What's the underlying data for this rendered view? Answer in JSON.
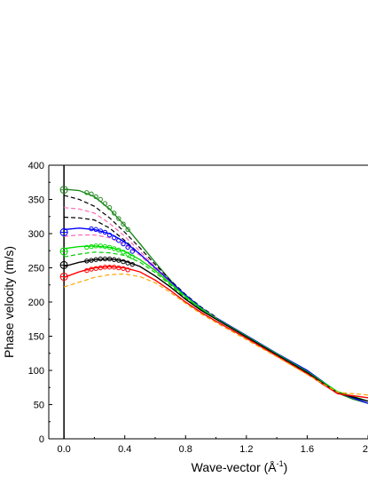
{
  "chart_data": {
    "type": "line",
    "xlabel": "Wave-vector  (Å",
    "xlabel_sup": "-1",
    "xlabel_close": ")",
    "ylabel": "Phase velocity  (m/s)",
    "xlim": [
      -0.1,
      2.0
    ],
    "ylim": [
      0,
      400
    ],
    "x_ticks": [
      0.0,
      0.4,
      0.8,
      1.2,
      1.6,
      2.0
    ],
    "x_tick_labels": [
      "0.0",
      "0.4",
      "0.8",
      "1.2",
      "1.6",
      "2"
    ],
    "y_ticks": [
      0,
      50,
      100,
      150,
      200,
      250,
      300,
      350,
      400
    ],
    "y_tick_labels": [
      "0",
      "50",
      "100",
      "150",
      "200",
      "250",
      "300",
      "350",
      "400"
    ],
    "grid": false,
    "legend": "none",
    "series": [
      {
        "style": "solid",
        "color": "#228b22",
        "x": [
          0.0,
          0.1,
          0.2,
          0.3,
          0.4,
          0.5,
          0.6,
          0.7,
          0.8,
          0.9,
          1.0,
          1.1,
          1.2,
          1.3,
          1.4,
          1.5,
          1.6,
          1.7,
          1.8,
          1.9,
          2.0
        ],
        "y": [
          365,
          363,
          354,
          336,
          312,
          285,
          258,
          232,
          208,
          190,
          176,
          163,
          150,
          137,
          124,
          110,
          96,
          80,
          67,
          58,
          52
        ]
      },
      {
        "style": "dash",
        "color": "#000000",
        "x": [
          0.0,
          0.1,
          0.2,
          0.3,
          0.4,
          0.5,
          0.6,
          0.7,
          0.8,
          0.9,
          1.0
        ],
        "y": [
          356,
          350,
          340,
          323,
          302,
          279,
          255,
          232,
          211,
          193,
          178
        ]
      },
      {
        "style": "dash",
        "color": "#ff69b4",
        "x": [
          0.0,
          0.1,
          0.2,
          0.3,
          0.4,
          0.5,
          0.6,
          0.7,
          0.8,
          0.9,
          1.0
        ],
        "y": [
          338,
          336,
          330,
          315,
          296,
          274,
          252,
          230,
          210,
          192,
          177
        ]
      },
      {
        "style": "dash",
        "color": "#000000",
        "x": [
          0.0,
          0.1,
          0.2,
          0.3,
          0.4,
          0.5,
          0.6,
          0.7,
          0.8,
          0.9,
          1.0
        ],
        "y": [
          324,
          323,
          320,
          308,
          290,
          270,
          249,
          228,
          208,
          191,
          177
        ]
      },
      {
        "style": "solid",
        "color": "#0000ff",
        "x": [
          0.0,
          0.1,
          0.2,
          0.3,
          0.4,
          0.5,
          0.6,
          0.7,
          0.8,
          0.9,
          1.0,
          1.2,
          1.4,
          1.6,
          1.8,
          2.0
        ],
        "y": [
          306,
          308,
          306,
          300,
          288,
          270,
          250,
          230,
          210,
          192,
          177,
          151,
          125,
          100,
          68,
          52
        ]
      },
      {
        "style": "dash",
        "color": "#ff69b4",
        "x": [
          0.0,
          0.1,
          0.2,
          0.3,
          0.4,
          0.5,
          0.6,
          0.7,
          0.8,
          0.9,
          1.0
        ],
        "y": [
          296,
          298,
          298,
          294,
          284,
          268,
          248,
          228,
          208,
          191,
          177
        ]
      },
      {
        "style": "solid",
        "color": "#00dd00",
        "x": [
          0.0,
          0.1,
          0.2,
          0.3,
          0.4,
          0.5,
          0.6,
          0.7,
          0.8,
          0.9,
          1.0,
          1.2,
          1.4,
          1.6,
          1.8,
          2.0
        ],
        "y": [
          278,
          281,
          282,
          280,
          274,
          262,
          246,
          227,
          208,
          191,
          176,
          150,
          124,
          98,
          69,
          55
        ]
      },
      {
        "style": "dash",
        "color": "#00cc00",
        "x": [
          0.0,
          0.1,
          0.2,
          0.3,
          0.4,
          0.5,
          0.6,
          0.7,
          0.8,
          0.9,
          1.0
        ],
        "y": [
          266,
          270,
          273,
          272,
          268,
          258,
          243,
          225,
          206,
          190,
          176
        ]
      },
      {
        "style": "solid",
        "color": "#000000",
        "x": [
          0.0,
          0.1,
          0.2,
          0.3,
          0.4,
          0.5,
          0.6,
          0.7,
          0.8,
          0.9,
          1.0,
          1.2,
          1.4,
          1.6,
          1.8,
          2.0
        ],
        "y": [
          252,
          258,
          262,
          263,
          260,
          252,
          238,
          222,
          204,
          188,
          175,
          149,
          123,
          97,
          67,
          55
        ]
      },
      {
        "style": "solid",
        "color": "#ff0000",
        "x": [
          0.0,
          0.1,
          0.2,
          0.3,
          0.4,
          0.5,
          0.6,
          0.7,
          0.8,
          0.9,
          1.0,
          1.2,
          1.4,
          1.6,
          1.8,
          2.0
        ],
        "y": [
          236,
          244,
          250,
          252,
          250,
          244,
          232,
          217,
          200,
          185,
          172,
          147,
          121,
          95,
          66,
          60
        ]
      },
      {
        "style": "dash",
        "color": "#ffa500",
        "x": [
          0.0,
          0.1,
          0.2,
          0.3,
          0.4,
          0.5,
          0.6,
          0.7,
          0.8,
          0.9,
          1.0,
          1.2,
          1.4,
          1.6,
          1.8,
          2.0
        ],
        "y": [
          222,
          229,
          236,
          240,
          241,
          237,
          228,
          214,
          198,
          183,
          170,
          145,
          120,
          94,
          68,
          64
        ]
      }
    ],
    "markers": [
      {
        "color": "#228b22",
        "x": [
          0.15,
          0.18,
          0.21,
          0.24,
          0.27,
          0.3,
          0.33,
          0.36,
          0.39,
          0.42
        ],
        "y": [
          360,
          358,
          354,
          350,
          344,
          338,
          330,
          322,
          314,
          306
        ]
      },
      {
        "color": "#0000ff",
        "x": [
          0.18,
          0.21,
          0.24,
          0.27,
          0.3,
          0.33,
          0.36,
          0.39,
          0.42,
          0.45
        ],
        "y": [
          307,
          306,
          304,
          302,
          298,
          294,
          290,
          285,
          280,
          274
        ]
      },
      {
        "color": "#00dd00",
        "x": [
          0.15,
          0.18,
          0.21,
          0.24,
          0.27,
          0.3,
          0.33,
          0.36,
          0.39,
          0.42,
          0.45
        ],
        "y": [
          280,
          281,
          282,
          282,
          281,
          280,
          278,
          276,
          273,
          270,
          266
        ]
      },
      {
        "color": "#000000",
        "x": [
          0.15,
          0.18,
          0.21,
          0.24,
          0.27,
          0.3,
          0.33,
          0.36,
          0.39,
          0.42,
          0.45
        ],
        "y": [
          260,
          261,
          262,
          263,
          263,
          263,
          262,
          261,
          259,
          257,
          255
        ]
      },
      {
        "color": "#ff0000",
        "x": [
          0.15,
          0.18,
          0.21,
          0.24,
          0.27,
          0.3,
          0.33,
          0.36,
          0.39,
          0.42
        ],
        "y": [
          246,
          248,
          249,
          250,
          251,
          251,
          251,
          250,
          249,
          247
        ]
      }
    ],
    "open_circles": [
      {
        "color": "#228b22",
        "x": 0.0,
        "y": 364
      },
      {
        "color": "#0000ff",
        "x": 0.0,
        "y": 302
      },
      {
        "color": "#00dd00",
        "x": 0.0,
        "y": 274
      },
      {
        "color": "#000000",
        "x": 0.0,
        "y": 254
      },
      {
        "color": "#ff0000",
        "x": 0.0,
        "y": 237
      }
    ]
  }
}
